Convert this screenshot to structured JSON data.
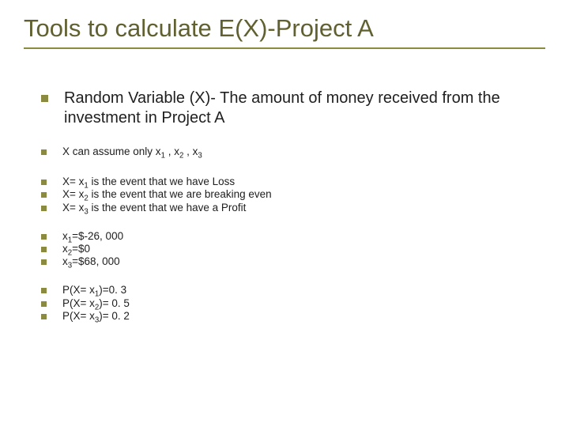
{
  "title": "Tools to calculate E(X)-Project A",
  "main_bullet": "Random Variable (X)- The amount of money received from the investment in Project A",
  "sub1": "X can assume only x₁ , x₂ , x₃",
  "events": {
    "e1": "X= x₁ is the event that we have Loss",
    "e2": "X= x₂ is the event that we are breaking even",
    "e3": "X= x₃ is the event that we have a Profit"
  },
  "values": {
    "v1": "x₁=$-26, 000",
    "v2": "x₂=$0",
    "v3": "x₃=$68, 000"
  },
  "probs": {
    "p1": "P(X= x₁)=0. 3",
    "p2": "P(X= x₂)= 0. 5",
    "p3": "P(X= x₃)= 0. 2"
  },
  "style": {
    "title_color": "#606030",
    "underline_color": "#8a8a40",
    "bullet_color": "#8a8a40",
    "text_color": "#202020",
    "background": "#ffffff",
    "title_fontsize": 31,
    "main_fontsize": 20,
    "sub_fontsize": 13.5
  }
}
